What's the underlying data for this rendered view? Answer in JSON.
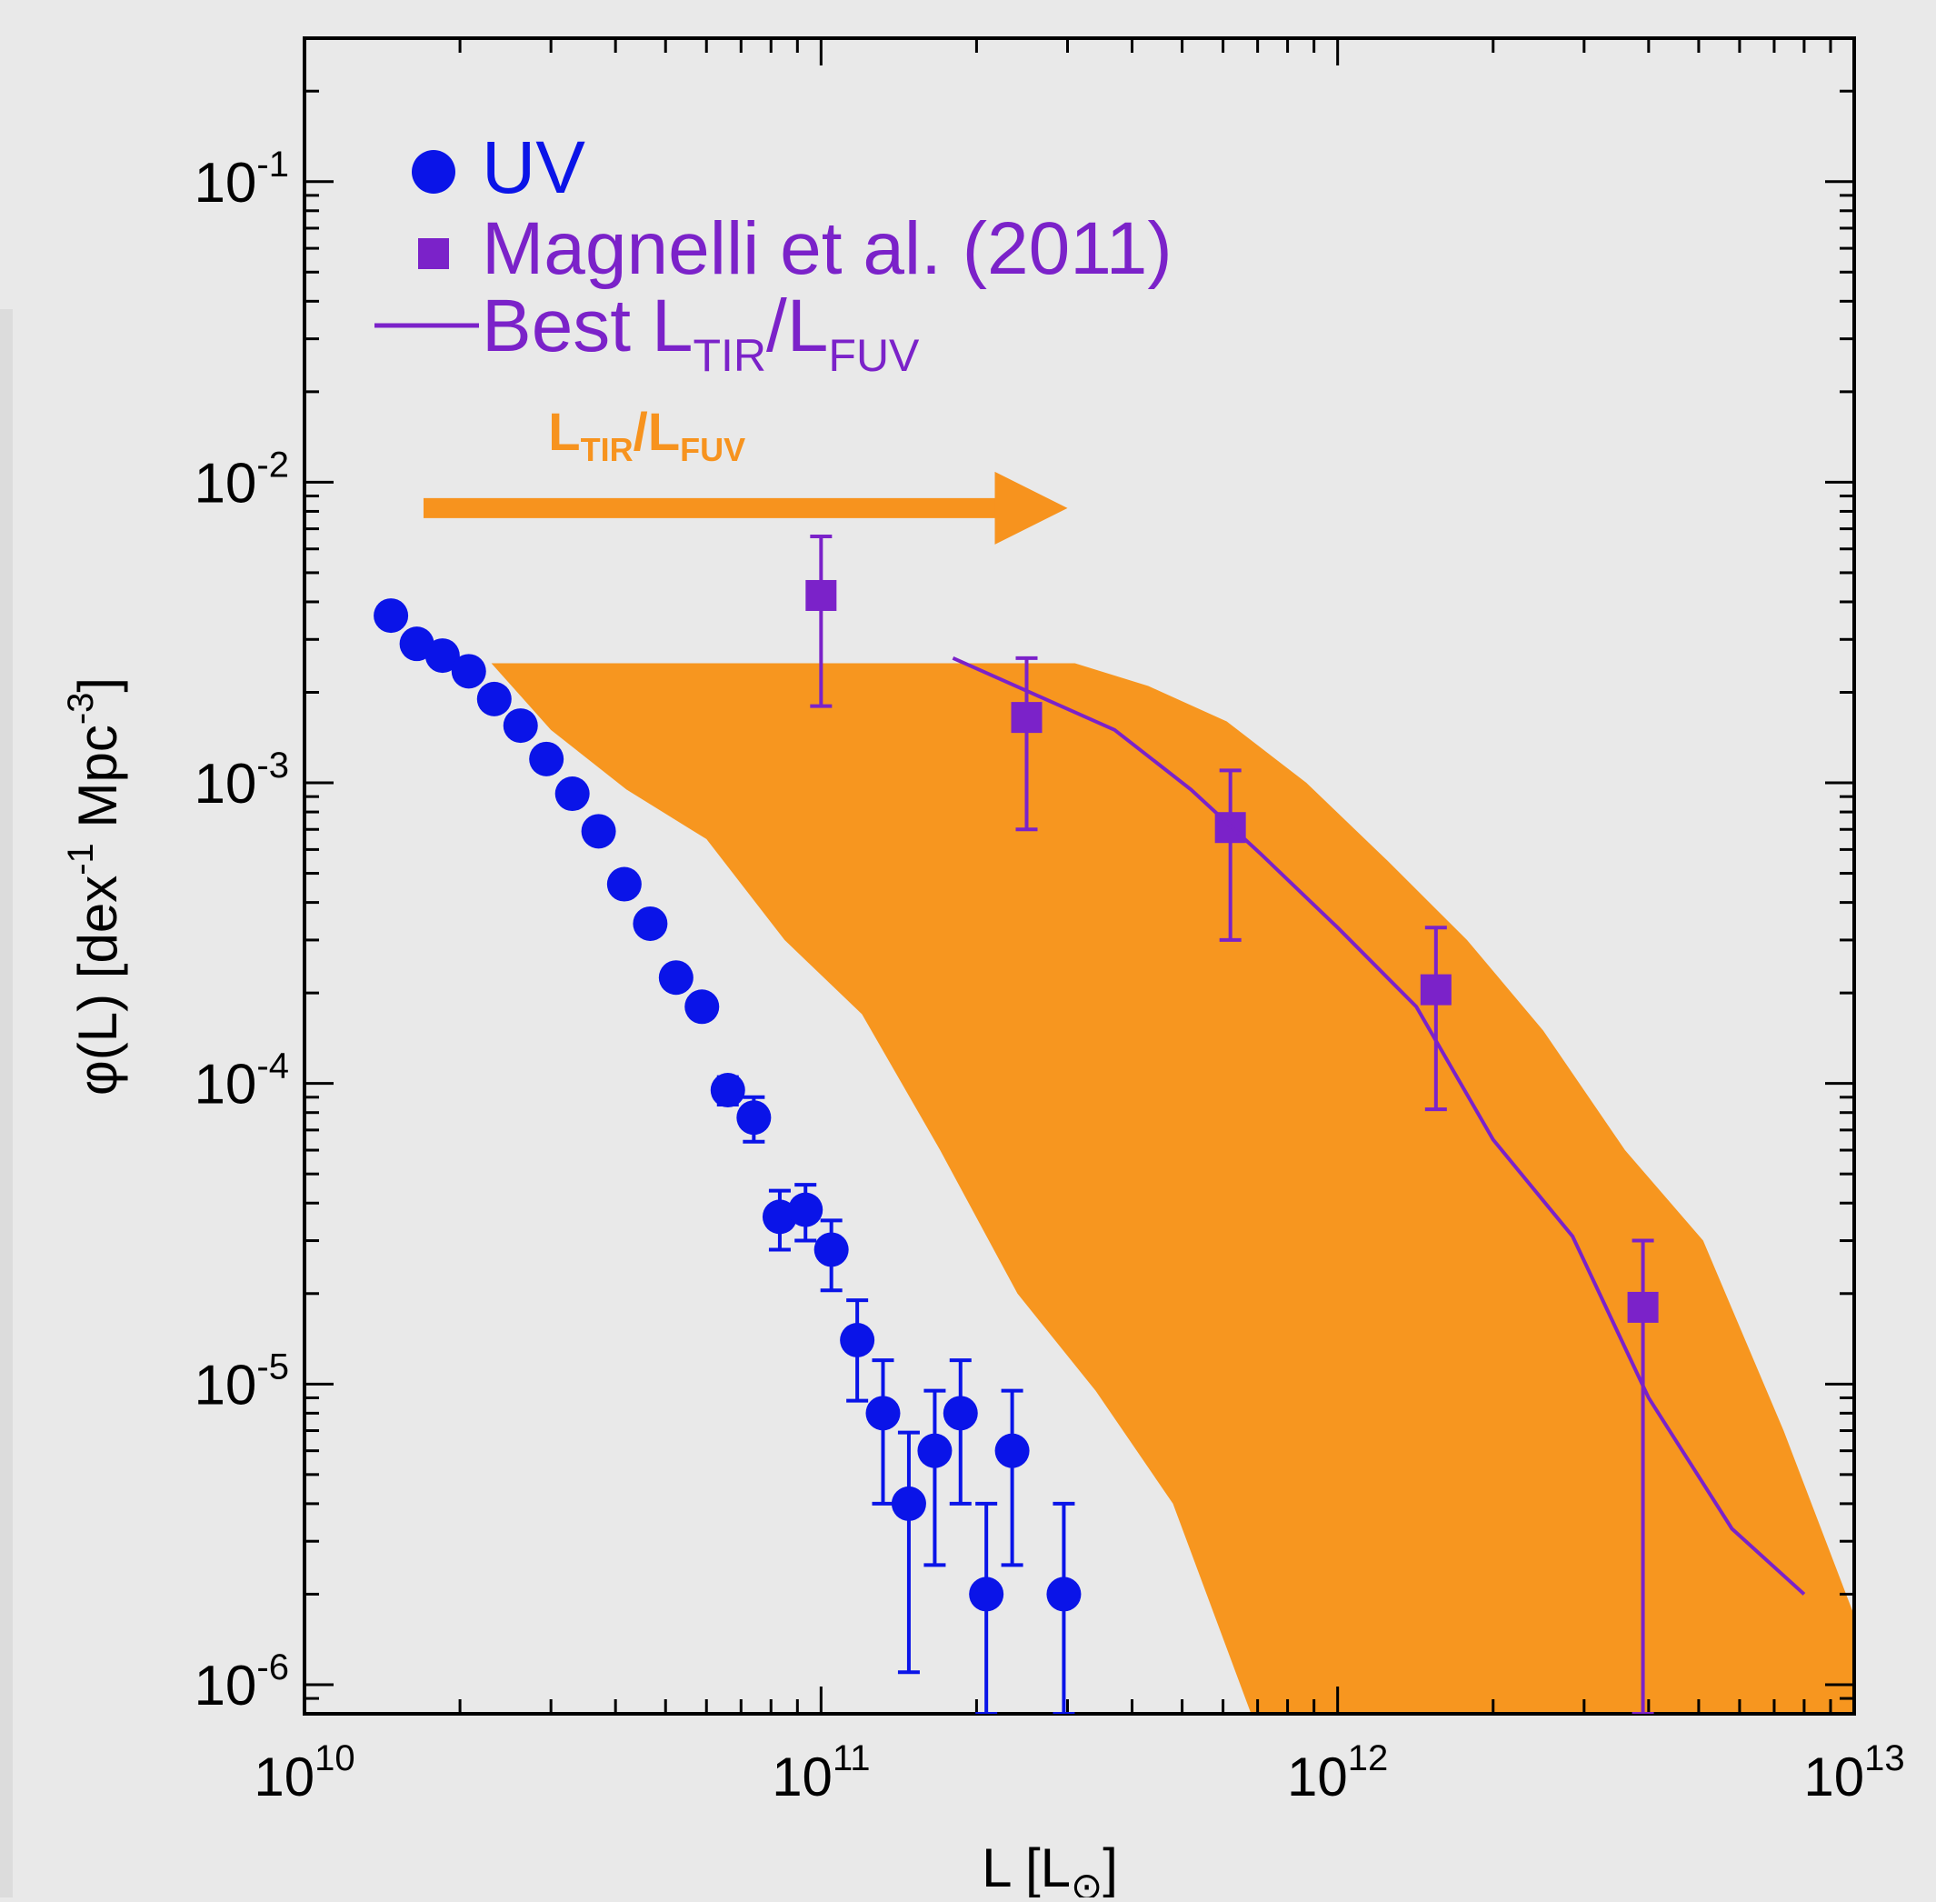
{
  "chart_data": {
    "type": "scatter",
    "title": "",
    "xlabel": "L [L",
    "xlabel_symbol": "⊙",
    "xlabel_close": "]",
    "ylabel": "φ(L) [dex",
    "ylabel_sup1": "-1",
    "ylabel_mid": " Mpc",
    "ylabel_sup2": "-3",
    "ylabel_close": "]",
    "xscale": "log",
    "yscale": "log",
    "xlim": [
      10000000000.0,
      10000000000000.0
    ],
    "ylim": [
      8e-07,
      0.3
    ],
    "x_tick_labels": [
      {
        "value": 10000000000.0,
        "base": "10",
        "exp": "10"
      },
      {
        "value": 100000000000.0,
        "base": "10",
        "exp": "11"
      },
      {
        "value": 1000000000000.0,
        "base": "10",
        "exp": "12"
      },
      {
        "value": 10000000000000.0,
        "base": "10",
        "exp": "13"
      }
    ],
    "y_tick_labels": [
      {
        "value": 0.1,
        "base": "10",
        "exp": "-1"
      },
      {
        "value": 0.01,
        "base": "10",
        "exp": "-2"
      },
      {
        "value": 0.001,
        "base": "10",
        "exp": "-3"
      },
      {
        "value": 0.0001,
        "base": "10",
        "exp": "-4"
      },
      {
        "value": 1e-05,
        "base": "10",
        "exp": "-5"
      },
      {
        "value": 1e-06,
        "base": "10",
        "exp": "-6"
      }
    ],
    "legend": {
      "placement": "top-left",
      "entries": [
        {
          "label": "UV",
          "marker": "circle",
          "color": "#0a14e8"
        },
        {
          "label": "Magnelli et al. (2011)",
          "marker": "square",
          "color": "#7b22c9"
        },
        {
          "label": "Best L",
          "sub1": "TIR",
          "mid": "/L",
          "sub2": "FUV",
          "marker": "line",
          "color": "#7b22c9"
        }
      ]
    },
    "annotation": {
      "text": "L",
      "sub1": "TIR",
      "mid": "/L",
      "sub2": "FUV",
      "color": "#f7931e",
      "arrow_from_x": 17000000000.0,
      "arrow_to_x": 300000000000.0,
      "arrow_y": 0.0082,
      "text_y": 0.0145,
      "text_x": 46000000000.0
    },
    "colors": {
      "uv": "#0a14e8",
      "magnelli": "#7b22c9",
      "band": "#f7961f",
      "background": "#e9e9e9"
    },
    "series": [
      {
        "name": "UV",
        "marker": "circle",
        "points": [
          {
            "x": 14700000000.0,
            "y": 0.0036
          },
          {
            "x": 16500000000.0,
            "y": 0.0029
          },
          {
            "x": 18500000000.0,
            "y": 0.00265
          },
          {
            "x": 20800000000.0,
            "y": 0.00235
          },
          {
            "x": 23300000000.0,
            "y": 0.0019
          },
          {
            "x": 26200000000.0,
            "y": 0.00155
          },
          {
            "x": 29400000000.0,
            "y": 0.0012
          },
          {
            "x": 33000000000.0,
            "y": 0.00092
          },
          {
            "x": 37100000000.0,
            "y": 0.00069
          },
          {
            "x": 41600000000.0,
            "y": 0.00046
          },
          {
            "x": 46700000000.0,
            "y": 0.00034
          },
          {
            "x": 52400000000.0,
            "y": 0.000225
          },
          {
            "x": 58800000000.0,
            "y": 0.00018
          },
          {
            "x": 66000000000.0,
            "y": 9.5e-05,
            "yerr_low": 8.5e-05,
            "yerr_high": 0.000105
          },
          {
            "x": 74100000000.0,
            "y": 7.7e-05,
            "yerr_low": 6.4e-05,
            "yerr_high": 9e-05
          },
          {
            "x": 83200000000.0,
            "y": 3.6e-05,
            "yerr_low": 2.8e-05,
            "yerr_high": 4.4e-05
          },
          {
            "x": 93300000000.0,
            "y": 3.8e-05,
            "yerr_low": 3e-05,
            "yerr_high": 4.6e-05
          },
          {
            "x": 104700000000.0,
            "y": 2.8e-05,
            "yerr_low": 2.05e-05,
            "yerr_high": 3.5e-05
          },
          {
            "x": 117500000000.0,
            "y": 1.4e-05,
            "yerr_low": 8.8e-06,
            "yerr_high": 1.9e-05
          },
          {
            "x": 131800000000.0,
            "y": 8e-06,
            "yerr_low": 4e-06,
            "yerr_high": 1.2e-05
          },
          {
            "x": 147900000000.0,
            "y": 4e-06,
            "yerr_low": 1.1e-06,
            "yerr_high": 6.9e-06
          },
          {
            "x": 166000000000.0,
            "y": 6e-06,
            "yerr_low": 2.5e-06,
            "yerr_high": 9.5e-06
          },
          {
            "x": 186200000000.0,
            "y": 8e-06,
            "yerr_low": 4e-06,
            "yerr_high": 1.2e-05
          },
          {
            "x": 208900000000.0,
            "y": 2e-06,
            "yerr_low": 8e-07,
            "yerr_high": 4e-06
          },
          {
            "x": 234400000000.0,
            "y": 6e-06,
            "yerr_low": 2.5e-06,
            "yerr_high": 9.5e-06
          },
          {
            "x": 295100000000.0,
            "y": 2e-06,
            "yerr_low": 8e-07,
            "yerr_high": 4e-06
          }
        ]
      },
      {
        "name": "Magnelli et al. (2011)",
        "marker": "square",
        "points": [
          {
            "x": 100000000000.0,
            "y": 0.0042,
            "yerr_low": 0.0018,
            "yerr_high": 0.0066
          },
          {
            "x": 250000000000.0,
            "y": 0.00165,
            "yerr_low": 0.0007,
            "yerr_high": 0.0026
          },
          {
            "x": 620000000000.0,
            "y": 0.00071,
            "yerr_low": 0.0003,
            "yerr_high": 0.0011
          },
          {
            "x": 1550000000000.0,
            "y": 0.000205,
            "yerr_low": 8.2e-05,
            "yerr_high": 0.00033
          },
          {
            "x": 3900000000000.0,
            "y": 1.8e-05,
            "yerr_low": 8e-07,
            "yerr_high": 3e-05
          }
        ]
      },
      {
        "name": "Best LTIR/LFUV",
        "marker": "line",
        "points": [
          {
            "x": 180000000000.0,
            "y": 0.0026
          },
          {
            "x": 370000000000.0,
            "y": 0.0015
          },
          {
            "x": 520000000000.0,
            "y": 0.00095
          },
          {
            "x": 710000000000.0,
            "y": 0.00058
          },
          {
            "x": 1000000000000.0,
            "y": 0.00033
          },
          {
            "x": 1420000000000.0,
            "y": 0.00018
          },
          {
            "x": 2000000000000.0,
            "y": 6.5e-05
          },
          {
            "x": 2850000000000.0,
            "y": 3.1e-05
          },
          {
            "x": 4000000000000.0,
            "y": 9e-06
          },
          {
            "x": 5800000000000.0,
            "y": 3.3e-06
          },
          {
            "x": 8000000000000.0,
            "y": 2e-06
          }
        ]
      }
    ],
    "band": {
      "name": "",
      "upper": [
        {
          "x": 23000000000.0,
          "y": 0.0025
        },
        {
          "x": 310000000000.0,
          "y": 0.0025
        },
        {
          "x": 430000000000.0,
          "y": 0.0021
        },
        {
          "x": 610000000000.0,
          "y": 0.0016
        },
        {
          "x": 870000000000.0,
          "y": 0.001
        },
        {
          "x": 1250000000000.0,
          "y": 0.00055
        },
        {
          "x": 1780000000000.0,
          "y": 0.0003
        },
        {
          "x": 2500000000000.0,
          "y": 0.00015
        },
        {
          "x": 3600000000000.0,
          "y": 6e-05
        },
        {
          "x": 5100000000000.0,
          "y": 3e-05
        },
        {
          "x": 7300000000000.0,
          "y": 7e-06
        },
        {
          "x": 10000000000000.0,
          "y": 1.7e-06
        },
        {
          "x": 10000000000000.0,
          "y": 8e-07
        }
      ],
      "lower": [
        {
          "x": 680000000000.0,
          "y": 8e-07
        },
        {
          "x": 480000000000.0,
          "y": 4e-06
        },
        {
          "x": 340000000000.0,
          "y": 9.5e-06
        },
        {
          "x": 240000000000.0,
          "y": 2e-05
        },
        {
          "x": 170000000000.0,
          "y": 6e-05
        },
        {
          "x": 120000000000.0,
          "y": 0.00017
        },
        {
          "x": 85000000000.0,
          "y": 0.0003
        },
        {
          "x": 60000000000.0,
          "y": 0.00065
        },
        {
          "x": 42000000000.0,
          "y": 0.00095
        },
        {
          "x": 30000000000.0,
          "y": 0.0015
        },
        {
          "x": 23000000000.0,
          "y": 0.0025
        }
      ]
    }
  }
}
